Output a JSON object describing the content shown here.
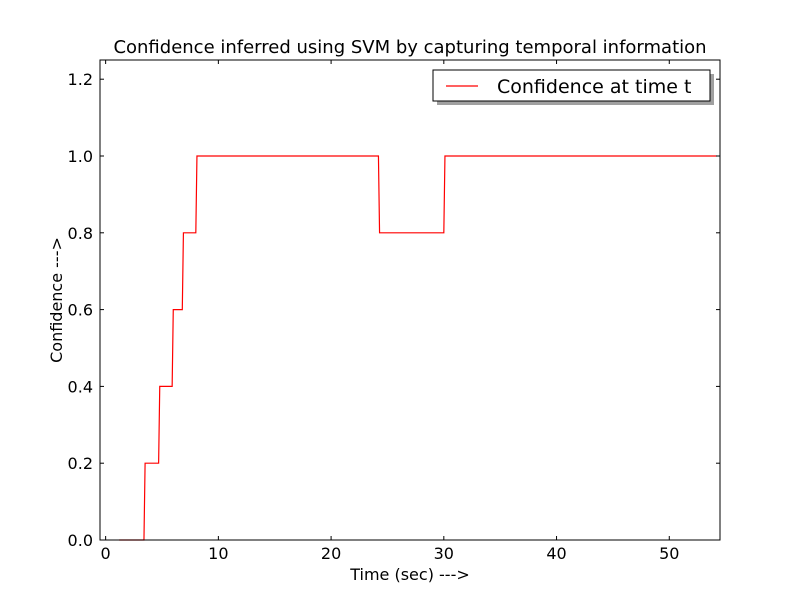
{
  "chart_data": {
    "type": "line",
    "title": "Confidence inferred using SVM by capturing temporal information",
    "xlabel": "Time (sec) --->",
    "ylabel": "Confidence --->",
    "xlim": [
      -0.5,
      54.5
    ],
    "ylim": [
      0.0,
      1.25
    ],
    "xticks": [
      0,
      10,
      20,
      30,
      40,
      50
    ],
    "xtick_labels": [
      "0",
      "10",
      "20",
      "30",
      "40",
      "50"
    ],
    "yticks": [
      0.0,
      0.2,
      0.4,
      0.6,
      0.8,
      1.0,
      1.2
    ],
    "ytick_labels": [
      "0.0",
      "0.2",
      "0.4",
      "0.6",
      "0.8",
      "1.0",
      "1.2"
    ],
    "grid": false,
    "legend": {
      "position": "top-right",
      "shadow": true
    },
    "series": [
      {
        "name": "Confidence at time t",
        "color": "#ff0000",
        "x": [
          1.2,
          3.4,
          3.5,
          4.7,
          4.8,
          5.9,
          6.0,
          6.8,
          6.9,
          8.0,
          8.1,
          24.2,
          24.3,
          30.0,
          30.1,
          54.2
        ],
        "y": [
          0.0,
          0.0,
          0.2,
          0.2,
          0.4,
          0.4,
          0.6,
          0.6,
          0.8,
          0.8,
          1.0,
          1.0,
          0.8,
          0.8,
          1.0,
          1.0
        ]
      }
    ]
  }
}
